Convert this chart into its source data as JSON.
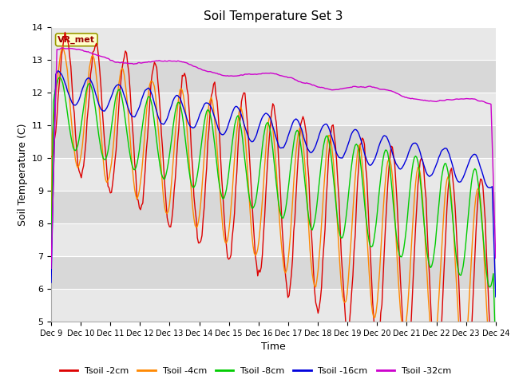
{
  "title": "Soil Temperature Set 3",
  "xlabel": "Time",
  "ylabel": "Soil Temperature (C)",
  "ylim": [
    5.0,
    14.0
  ],
  "yticks": [
    5.0,
    6.0,
    7.0,
    8.0,
    9.0,
    10.0,
    11.0,
    12.0,
    13.0,
    14.0
  ],
  "xtick_labels": [
    "Dec 9",
    "Dec 10",
    "Dec 11",
    "Dec 12",
    "Dec 13",
    "Dec 14",
    "Dec 15",
    "Dec 16",
    "Dec 17",
    "Dec 18",
    "Dec 19",
    "Dec 20",
    "Dec 21",
    "Dec 22",
    "Dec 23",
    "Dec 24"
  ],
  "legend_label": "VR_met",
  "line_colors": {
    "Tsoil -2cm": "#dd0000",
    "Tsoil -4cm": "#ff8800",
    "Tsoil -8cm": "#00cc00",
    "Tsoil -16cm": "#0000dd",
    "Tsoil -32cm": "#cc00cc"
  },
  "band_colors": [
    "#e8e8e8",
    "#d8d8d8"
  ],
  "fig_bg": "#ffffff",
  "plot_bg": "#e8e8e8",
  "n_points": 384,
  "seed": 42
}
